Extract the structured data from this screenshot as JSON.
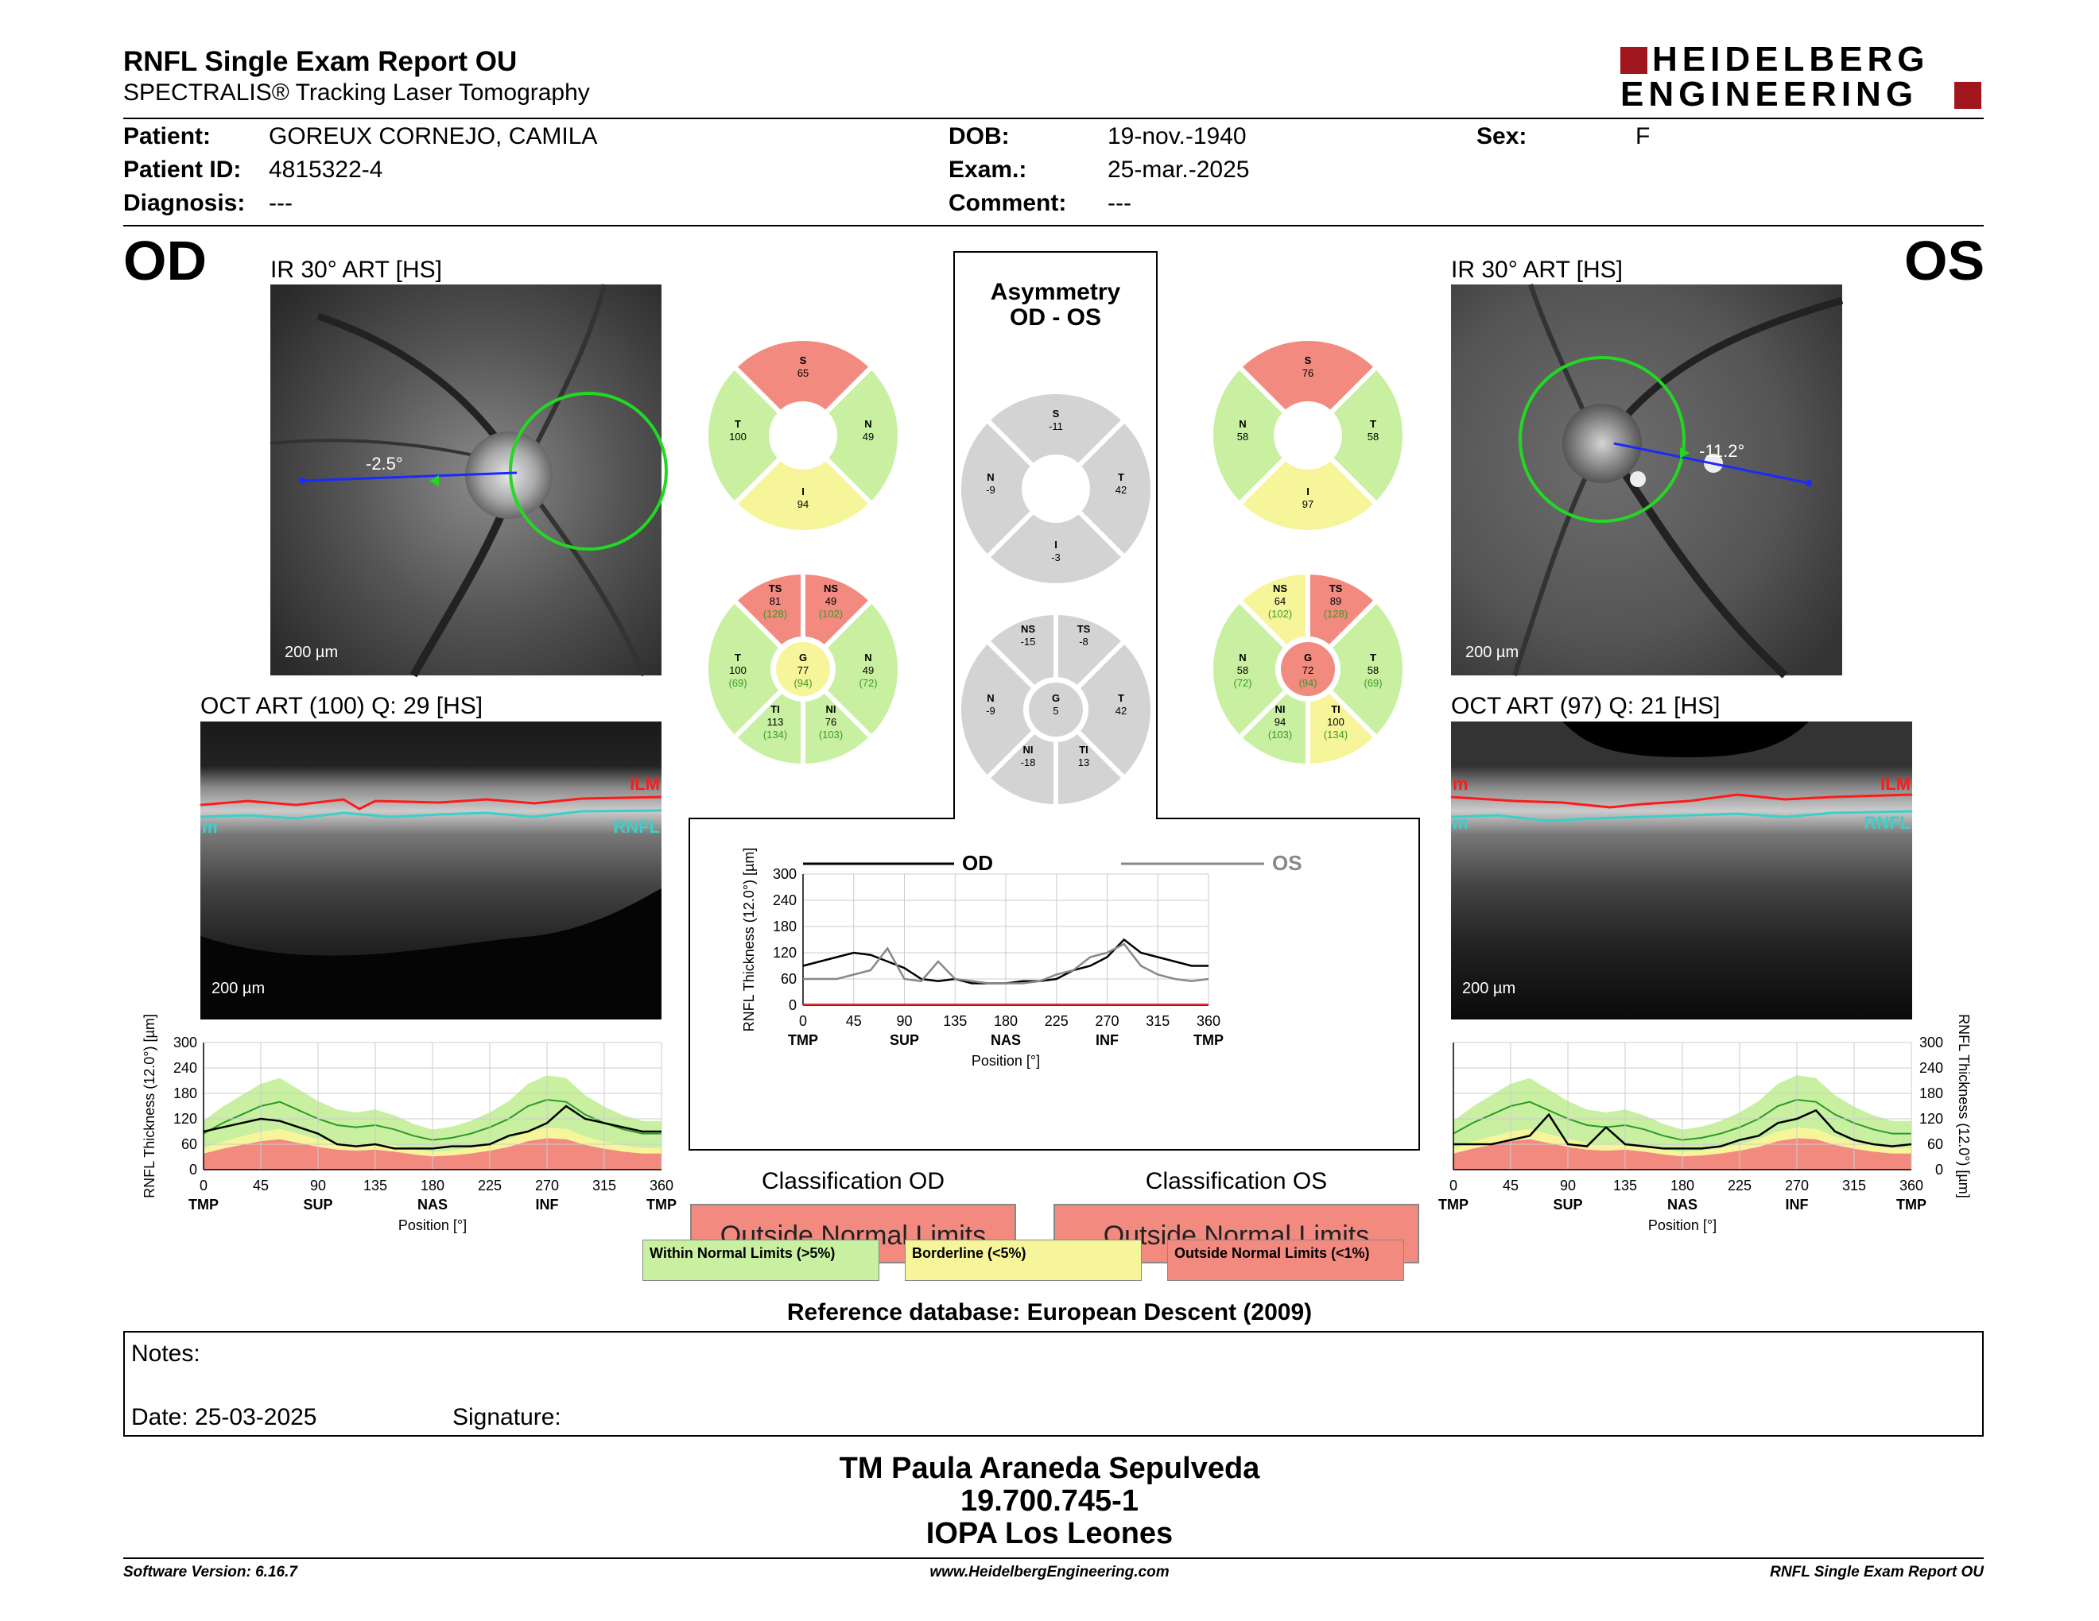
{
  "header": {
    "title": "RNFL Single Exam Report OU",
    "subtitle": "SPECTRALIS® Tracking Laser Tomography",
    "logo_line1": "HEIDELBERG",
    "logo_line2": "ENGINEERING"
  },
  "patient": {
    "patient_label": "Patient:",
    "patient_value": "GOREUX CORNEJO, CAMILA",
    "id_label": "Patient ID:",
    "id_value": "4815322-4",
    "diag_label": "Diagnosis:",
    "diag_value": "---",
    "dob_label": "DOB:",
    "dob_value": "19-nov.-1940",
    "exam_label": "Exam.:",
    "exam_value": "25-mar.-2025",
    "comment_label": "Comment:",
    "comment_value": "---",
    "sex_label": "Sex:",
    "sex_value": "F"
  },
  "od": {
    "eye": "OD",
    "ir_caption": "IR 30° ART [HS]",
    "ir_scale": "200 µm",
    "angle": "-2.5°",
    "oct_caption": "OCT ART (100) Q: 29 [HS]",
    "oct_scale": "200 µm",
    "ilm": "ILM",
    "rnfl": "RNFL",
    "m": "m",
    "sectors4": {
      "S": "65",
      "T": "100",
      "N": "49",
      "I": "94"
    },
    "sectors6": {
      "TS": [
        "81",
        "(128)"
      ],
      "NS": [
        "49",
        "(102)"
      ],
      "T": [
        "100",
        "(69)"
      ],
      "G": [
        "77",
        "(94)"
      ],
      "N": [
        "49",
        "(72)"
      ],
      "TI": [
        "113",
        "(134)"
      ],
      "NI": [
        "76",
        "(103)"
      ]
    }
  },
  "os": {
    "eye": "OS",
    "ir_caption": "IR 30° ART [HS]",
    "ir_scale": "200 µm",
    "angle": "-11.2°",
    "oct_caption": "OCT ART (97) Q: 21 [HS]",
    "oct_scale": "200 µm",
    "ilm": "ILM",
    "rnfl": "RNFL",
    "m": "m",
    "sectors4": {
      "S": "76",
      "N": "58",
      "T": "58",
      "I": "97"
    },
    "sectors6": {
      "NS": [
        "64",
        "(102)"
      ],
      "TS": [
        "89",
        "(128)"
      ],
      "N": [
        "58",
        "(72)"
      ],
      "G": [
        "72",
        "(94)"
      ],
      "T": [
        "58",
        "(69)"
      ],
      "NI": [
        "94",
        "(103)"
      ],
      "TI": [
        "100",
        "(134)"
      ]
    }
  },
  "asymmetry": {
    "title1": "Asymmetry",
    "title2": "OD - OS",
    "sectors4": {
      "S": "-11",
      "N": "-9",
      "T": "42",
      "I": "-3"
    },
    "sectors6": {
      "NS": "-15",
      "TS": "-8",
      "N": "-9",
      "G": "5",
      "T": "42",
      "NI": "-18",
      "TI": "13"
    }
  },
  "labels": {
    "S": "S",
    "T": "T",
    "N": "N",
    "I": "I",
    "G": "G",
    "TS": "TS",
    "NS": "NS",
    "TI": "TI",
    "NI": "NI"
  },
  "colors": {
    "green": "#c8f0a0",
    "yellow": "#f7f59a",
    "red": "#f28a80",
    "grey": "#d3d3d3",
    "od_line": "#000000",
    "os_line": "#888888"
  },
  "chart_axes": {
    "ylabel": "RNFL Thickness (12.0°) [µm]",
    "xlabel": "Position [°]",
    "y_ticks": [
      "0",
      "60",
      "120",
      "180",
      "240",
      "300"
    ],
    "x_ticks": [
      "0",
      "45",
      "90",
      "135",
      "180",
      "225",
      "270",
      "315",
      "360"
    ],
    "x_cat": [
      "TMP",
      "SUP",
      "NAS",
      "INF",
      "TMP"
    ]
  },
  "chart_data": [
    {
      "type": "line",
      "title": "",
      "xlabel": "Position [°]",
      "ylabel": "RNFL Thickness (12.0°) [µm]",
      "xlim": [
        0,
        360
      ],
      "ylim": [
        0,
        300
      ],
      "x": [
        0,
        15,
        30,
        45,
        60,
        75,
        90,
        105,
        120,
        135,
        150,
        165,
        180,
        195,
        210,
        225,
        240,
        255,
        270,
        285,
        300,
        315,
        330,
        345,
        360
      ],
      "series": [
        {
          "name": "OD",
          "values": [
            90,
            100,
            110,
            120,
            115,
            100,
            85,
            60,
            55,
            60,
            50,
            50,
            50,
            55,
            55,
            60,
            80,
            90,
            110,
            150,
            120,
            110,
            100,
            90,
            90
          ]
        },
        {
          "name": "OS",
          "values": [
            60,
            60,
            60,
            70,
            80,
            130,
            60,
            55,
            100,
            60,
            55,
            50,
            50,
            50,
            55,
            70,
            80,
            110,
            120,
            140,
            90,
            70,
            60,
            55,
            60
          ]
        }
      ]
    },
    {
      "type": "line",
      "title": "",
      "xlabel": "Position [°]",
      "ylabel": "RNFL Thickness (12.0°) [µm]",
      "xlim": [
        0,
        360
      ],
      "ylim": [
        0,
        300
      ],
      "x": [
        0,
        15,
        30,
        45,
        60,
        75,
        90,
        105,
        120,
        135,
        150,
        165,
        180,
        195,
        210,
        225,
        240,
        255,
        270,
        285,
        300,
        315,
        330,
        345,
        360
      ],
      "series": [
        {
          "name": "OD",
          "values": [
            90,
            100,
            110,
            120,
            115,
            100,
            85,
            60,
            55,
            60,
            50,
            50,
            50,
            55,
            55,
            60,
            80,
            90,
            110,
            150,
            120,
            110,
            100,
            90,
            90
          ]
        }
      ]
    },
    {
      "type": "line",
      "title": "",
      "xlabel": "Position [°]",
      "ylabel": "RNFL Thickness (12.0°) [µm]",
      "xlim": [
        0,
        360
      ],
      "ylim": [
        0,
        300
      ],
      "x": [
        0,
        15,
        30,
        45,
        60,
        75,
        90,
        105,
        120,
        135,
        150,
        165,
        180,
        195,
        210,
        225,
        240,
        255,
        270,
        285,
        300,
        315,
        330,
        345,
        360
      ],
      "series": [
        {
          "name": "OS",
          "values": [
            60,
            60,
            60,
            70,
            80,
            130,
            60,
            55,
            100,
            60,
            55,
            50,
            50,
            50,
            55,
            70,
            80,
            110,
            120,
            140,
            90,
            70,
            60,
            55,
            60
          ]
        }
      ]
    }
  ],
  "mid_chart": {
    "od_label": "OD",
    "os_label": "OS"
  },
  "classification": {
    "od_title": "Classification OD",
    "os_title": "Classification OS",
    "od_value": "Outside Normal Limits",
    "os_value": "Outside Normal Limits"
  },
  "legend": {
    "within": "Within Normal Limits (>5%)",
    "borderline": "Borderline (<5%)",
    "outside": "Outside Normal Limits (<1%)"
  },
  "reference": "Reference database: European Descent (2009)",
  "notes": {
    "notes_label": "Notes:",
    "date_label": "Date: 25-03-2025",
    "signature_label": "Signature:"
  },
  "signer": {
    "name": "TM Paula Araneda Sepulveda",
    "rut": "19.700.745-1",
    "org": "IOPA Los Leones"
  },
  "footer": {
    "software": "Software Version: 6.16.7",
    "website": "www.HeidelbergEngineering.com",
    "report": "RNFL Single Exam Report OU"
  }
}
